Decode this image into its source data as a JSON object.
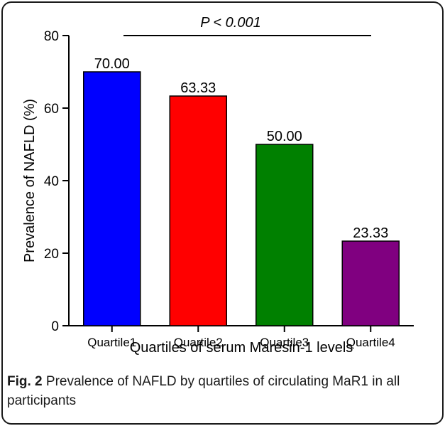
{
  "chart_data": {
    "type": "bar",
    "categories": [
      "Quartile1",
      "Quartile2",
      "Quartile3",
      "Quartile4"
    ],
    "values": [
      70.0,
      63.33,
      50.0,
      23.33
    ],
    "value_labels": [
      "70.00",
      "63.33",
      "50.00",
      "23.33"
    ],
    "colors": [
      "#0000ff",
      "#ff0000",
      "#008000",
      "#800080"
    ],
    "xlabel": "Quartiles of serum Maresin-1 levels",
    "ylabel": "Prevalence of NAFLD (%)",
    "ylim": [
      0,
      80
    ],
    "yticks": [
      "0",
      "20",
      "40",
      "60",
      "80"
    ],
    "annotation": "P < 0.001",
    "grid": false
  },
  "caption": {
    "label": "Fig. 2",
    "text": " Prevalence of NAFLD by quartiles of circulating MaR1 in all participants"
  }
}
